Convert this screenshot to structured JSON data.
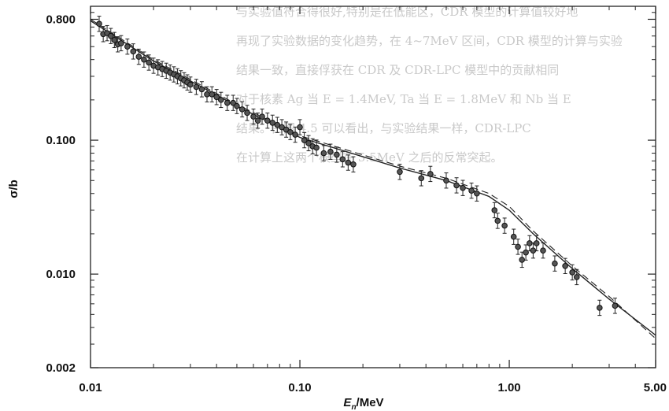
{
  "chart_data": {
    "type": "scatter",
    "title": "",
    "xlabel": "E_n/MeV",
    "xlabel_main": "E",
    "xlabel_sub": "n",
    "xlabel_unit": "/MeV",
    "ylabel": "σ/b",
    "x_scale": "log",
    "y_scale": "log",
    "xlim": [
      0.01,
      5.0
    ],
    "ylim": [
      0.002,
      1.0
    ],
    "x_ticks": [
      0.01,
      0.1,
      1.0,
      5.0
    ],
    "x_tick_labels": [
      "0.01",
      "0.10",
      "1.00",
      "5.00"
    ],
    "y_ticks": [
      0.002,
      0.01,
      0.1,
      0.8
    ],
    "y_tick_labels": [
      "0.002",
      "0.010",
      "0.100",
      "0.800"
    ],
    "grid": false,
    "legend": "none",
    "series": [
      {
        "marker": "circle-with-errorbars",
        "x": [
          0.011,
          0.0115,
          0.012,
          0.0125,
          0.013,
          0.0135,
          0.014,
          0.015,
          0.016,
          0.017,
          0.018,
          0.019,
          0.02,
          0.021,
          0.022,
          0.023,
          0.024,
          0.025,
          0.026,
          0.027,
          0.028,
          0.029,
          0.03,
          0.032,
          0.034,
          0.036,
          0.038,
          0.04,
          0.042,
          0.045,
          0.048,
          0.05,
          0.053,
          0.056,
          0.06,
          0.063,
          0.066,
          0.07,
          0.074,
          0.078,
          0.082,
          0.086,
          0.09,
          0.095,
          0.1,
          0.105,
          0.11,
          0.115,
          0.12,
          0.13,
          0.14,
          0.15,
          0.16,
          0.17,
          0.18,
          0.3,
          0.38,
          0.42,
          0.5,
          0.56,
          0.6,
          0.66,
          0.7,
          0.85,
          0.88,
          0.95,
          1.05,
          1.1,
          1.15,
          1.2,
          1.25,
          1.3,
          1.35,
          1.45,
          1.65,
          1.85,
          2.0,
          2.1,
          2.7,
          3.2
        ],
        "y": [
          0.74,
          0.62,
          0.63,
          0.6,
          0.56,
          0.52,
          0.53,
          0.5,
          0.46,
          0.42,
          0.4,
          0.38,
          0.36,
          0.35,
          0.34,
          0.33,
          0.32,
          0.31,
          0.3,
          0.29,
          0.28,
          0.27,
          0.26,
          0.25,
          0.24,
          0.22,
          0.22,
          0.21,
          0.2,
          0.19,
          0.19,
          0.18,
          0.17,
          0.16,
          0.15,
          0.14,
          0.15,
          0.14,
          0.135,
          0.13,
          0.125,
          0.12,
          0.115,
          0.11,
          0.125,
          0.1,
          0.095,
          0.09,
          0.088,
          0.08,
          0.082,
          0.078,
          0.072,
          0.068,
          0.066,
          0.058,
          0.052,
          0.056,
          0.05,
          0.046,
          0.044,
          0.042,
          0.04,
          0.03,
          0.025,
          0.023,
          0.019,
          0.016,
          0.0128,
          0.0145,
          0.017,
          0.015,
          0.017,
          0.015,
          0.012,
          0.0115,
          0.0103,
          0.0095,
          0.0056,
          0.0058
        ]
      },
      {
        "marker": "solid-line",
        "x": [
          0.01,
          0.02,
          0.05,
          0.1,
          0.3,
          0.5,
          0.8,
          1.0,
          1.3,
          2.0,
          3.0,
          5.0
        ],
        "y": [
          0.78,
          0.39,
          0.18,
          0.105,
          0.062,
          0.05,
          0.038,
          0.03,
          0.02,
          0.011,
          0.0065,
          0.0035
        ]
      },
      {
        "marker": "dashed-line",
        "x": [
          0.01,
          0.02,
          0.05,
          0.1,
          0.3,
          0.5,
          0.8,
          1.0,
          1.3,
          2.0,
          3.0,
          5.0
        ],
        "y": [
          0.8,
          0.4,
          0.185,
          0.108,
          0.064,
          0.052,
          0.04,
          0.032,
          0.021,
          0.0115,
          0.0068,
          0.0033
        ]
      }
    ]
  },
  "show_through": {
    "lines": [
      "与实验值符合得很好,特别是在低能区，CDR 模型的计算值较好地",
      "再现了实验数据的变化趋势，在 4~7MeV 区间，CDR 模型的计算与实验",
      "结果一致，直接俘获在 CDR 及 CDR-LPC 模型中的贡献相同",
      "对于核素 Ag 当 E = 1.4MeV, Ta 当 E = 1.8MeV 和 Nb 当 E",
      "结果。由图 4.5 可以看出，与实验结果一样，CDR-LPC",
      "在计算上这两个模型在 5.5MeV 之后的反常突起。"
    ]
  }
}
